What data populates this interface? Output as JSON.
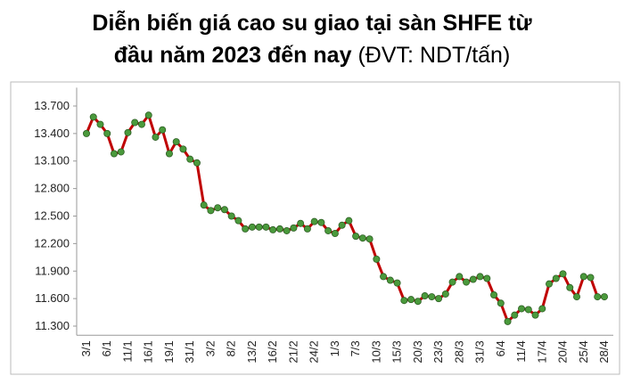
{
  "chart_data": {
    "type": "line",
    "title": [
      "Diễn biến giá cao su giao tại sàn SHFE từ",
      "đầu năm 2023 đến nay"
    ],
    "unit": "(ĐVT: NDT/tấn)",
    "categories": [
      "3/1",
      null,
      null,
      "6/1",
      null,
      null,
      "11/1",
      null,
      null,
      "16/1",
      null,
      null,
      "19/1",
      null,
      null,
      "31/1",
      null,
      null,
      "3/2",
      null,
      null,
      "8/2",
      null,
      null,
      "13/2",
      null,
      null,
      "16/2",
      null,
      null,
      "21/2",
      null,
      null,
      "24/2",
      null,
      null,
      "1/3",
      null,
      null,
      "7/3",
      null,
      null,
      "10/3",
      null,
      null,
      "15/3",
      null,
      null,
      "20/3",
      null,
      null,
      "23/3",
      null,
      null,
      "28/3",
      null,
      null,
      "31/3",
      null,
      null,
      "6/4",
      null,
      null,
      "11/4",
      null,
      null,
      "17/4",
      null,
      null,
      "20/4",
      null,
      null,
      "25/4",
      null,
      null,
      "28/4"
    ],
    "series": [
      {
        "name": "SHFE",
        "color": "#c00000",
        "marker_color": "#4a9a3c",
        "values": [
          13400,
          13580,
          13500,
          13400,
          13180,
          13200,
          13410,
          13520,
          13500,
          13600,
          13360,
          13440,
          13180,
          13310,
          13230,
          13120,
          13080,
          12620,
          12560,
          12590,
          12570,
          12500,
          12450,
          12360,
          12380,
          12380,
          12380,
          12350,
          12360,
          12340,
          12370,
          12420,
          12360,
          12440,
          12430,
          12340,
          12310,
          12400,
          12450,
          12280,
          12260,
          12250,
          12030,
          11840,
          11800,
          11770,
          11580,
          11590,
          11570,
          11630,
          11620,
          11600,
          11650,
          11780,
          11840,
          11780,
          11810,
          11840,
          11820,
          11640,
          11550,
          11350,
          11420,
          11490,
          11480,
          11420,
          11490,
          11760,
          11820,
          11870,
          11720,
          11620,
          11840,
          11830,
          11620,
          11620
        ]
      }
    ],
    "ylim": [
      11200,
      13900
    ],
    "yticks": [
      {
        "value": 11300,
        "label": "11.300"
      },
      {
        "value": 11600,
        "label": "11.600"
      },
      {
        "value": 11900,
        "label": "11.900"
      },
      {
        "value": 12200,
        "label": "12.200"
      },
      {
        "value": 12500,
        "label": "12.500"
      },
      {
        "value": 12800,
        "label": "12.800"
      },
      {
        "value": 13100,
        "label": "13.100"
      },
      {
        "value": 13400,
        "label": "13.400"
      },
      {
        "value": 13700,
        "label": "13.700"
      }
    ],
    "grid": false
  }
}
